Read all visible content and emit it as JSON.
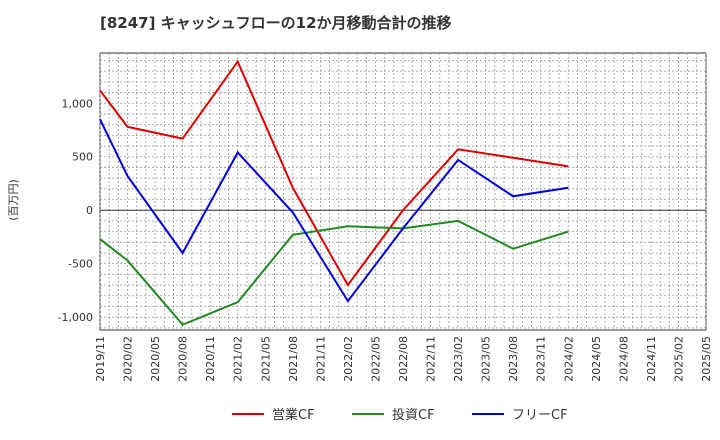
{
  "chart_data": {
    "type": "line",
    "title": "[8247]  キャッシュフローの12か月移動合計の推移",
    "ylabel": "(百万円)",
    "xlabel": "",
    "ylim": [
      -1120,
      1470
    ],
    "yticks": [
      -1000,
      -500,
      0,
      500,
      1000
    ],
    "ytick_labels": [
      "-1,000",
      "-500",
      "0",
      "500",
      "1,000"
    ],
    "x_ticks": [
      "2019/11",
      "2020/02",
      "2020/05",
      "2020/08",
      "2020/11",
      "2021/02",
      "2021/05",
      "2021/08",
      "2021/11",
      "2022/02",
      "2022/05",
      "2022/08",
      "2022/11",
      "2023/02",
      "2023/05",
      "2023/08",
      "2023/11",
      "2024/02",
      "2024/05",
      "2024/08",
      "2024/11",
      "2025/02",
      "2025/05"
    ],
    "x": [
      "2019/11",
      "2020/02",
      "2020/08",
      "2021/02",
      "2021/08",
      "2022/02",
      "2022/08",
      "2023/02",
      "2023/08",
      "2024/02"
    ],
    "series": [
      {
        "name": "営業CF",
        "color": "#dd0000",
        "values": [
          1120,
          780,
          670,
          1390,
          210,
          -700,
          0,
          570,
          490,
          410
        ]
      },
      {
        "name": "投資CF",
        "color": "#228822",
        "values": [
          -270,
          -470,
          -1070,
          -860,
          -230,
          -150,
          -170,
          -100,
          -360,
          -200
        ]
      },
      {
        "name": "フリーCF",
        "color": "#0000dd",
        "values": [
          850,
          320,
          -400,
          540,
          -20,
          -850,
          -170,
          470,
          130,
          210
        ]
      }
    ],
    "grid": true,
    "legend": "bottom-center"
  }
}
